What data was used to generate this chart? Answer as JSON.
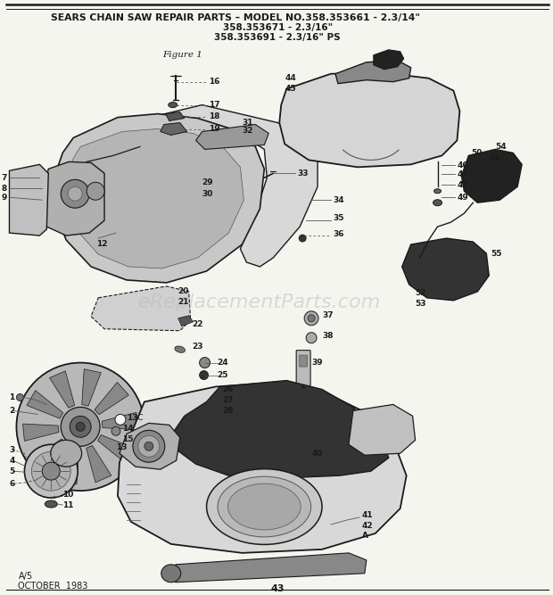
{
  "title_line1": "SEARS CHAIN SAW REPAIR PARTS – MODEL NO.358.353661 - 2.3/14\"",
  "title_line2": "358.353671 - 2.3/16\"",
  "title_line3": "358.353691 - 2.3/16\" PS",
  "figure_label": "Figure 1",
  "bottom_left": "A/5\nOCTOBER  1983",
  "bottom_center": "43",
  "bg_color": "#f5f5f0",
  "text_color": "#111111",
  "dark": "#1a1a1a",
  "mid": "#555555",
  "light": "#aaaaaa",
  "vlight": "#cccccc",
  "watermark": "eReplacementParts.com",
  "watermark_color": "#bbbbbb"
}
